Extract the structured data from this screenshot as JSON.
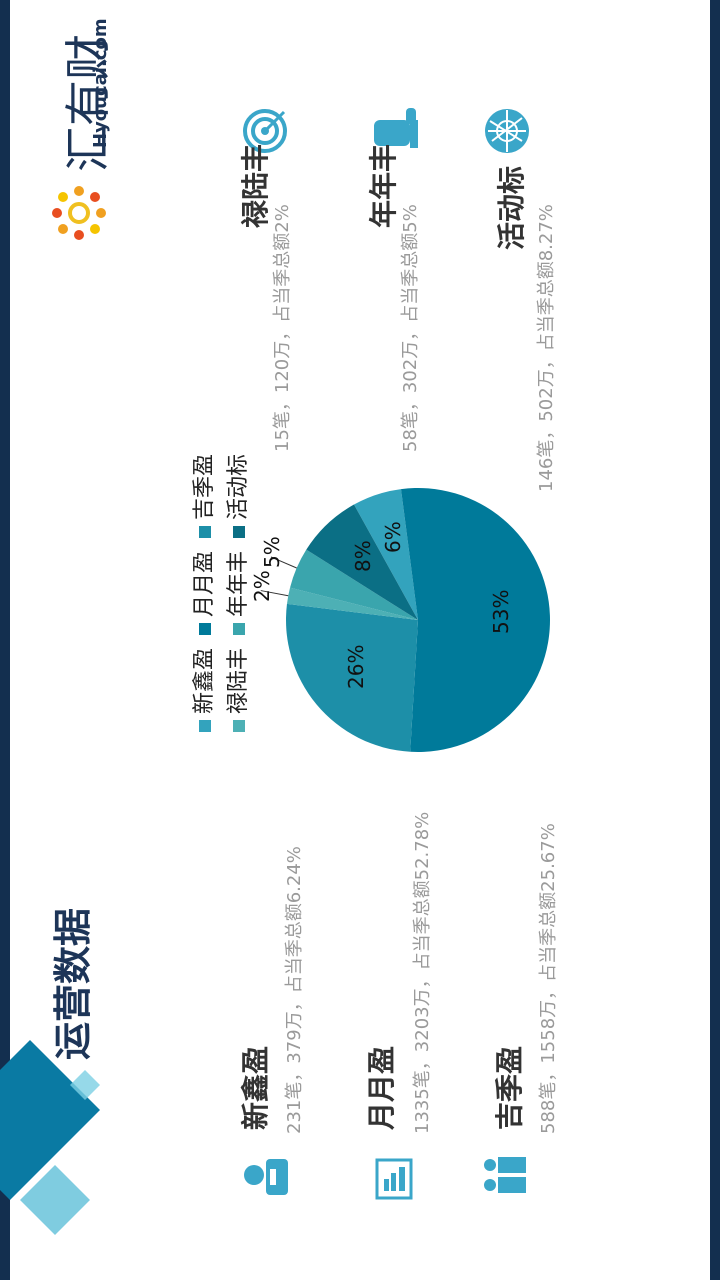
{
  "header": {
    "title": "运营数据",
    "logo_text": "汇有财",
    "logo_domain": "Hyoucai.com"
  },
  "products": [
    {
      "name": "新鑫盈",
      "desc": "231笔，379万，占当季总额6.24%",
      "icon": "user-icon"
    },
    {
      "name": "月月盈",
      "desc": "1335笔，3203万，占当季总额52.78%",
      "icon": "bar-chart-icon"
    },
    {
      "name": "吉季盈",
      "desc": "588笔，1558万，占当季总额25.67%",
      "icon": "group-icon"
    },
    {
      "name": "禄陆丰",
      "desc": "15笔，120万，占当季总额2%",
      "icon": "target-icon"
    },
    {
      "name": "年年丰",
      "desc": "58笔，302万，占当季总额5%",
      "icon": "thumbs-up-icon"
    },
    {
      "name": "活动标",
      "desc": "146笔，502万，占当季总额8.27%",
      "icon": "globe-icon"
    }
  ],
  "legend": {
    "row1": [
      "新鑫盈",
      "月月盈",
      "吉季盈"
    ],
    "row2": [
      "禄陆丰",
      "年年丰",
      "活动标"
    ]
  },
  "colors": {
    "accent_dark": "#1d3558",
    "icon_blue": "#3aa6c9",
    "slice_xinxinying": "#33a3bd",
    "slice_yueyueying": "#007a9a",
    "slice_jijiying": "#1d8fa8",
    "slice_luluofeng": "#4db0b5",
    "slice_niannianfeng": "#3aa5ad",
    "slice_huodongbiao": "#0b6f85"
  },
  "chart_data": {
    "type": "pie",
    "categories": [
      "新鑫盈",
      "月月盈",
      "吉季盈",
      "禄陆丰",
      "年年丰",
      "活动标"
    ],
    "values": [
      6,
      53,
      26,
      2,
      5,
      8
    ],
    "labels": [
      "6%",
      "53%",
      "26%",
      "2%",
      "5%",
      "8%"
    ],
    "legend_placement": "left"
  }
}
